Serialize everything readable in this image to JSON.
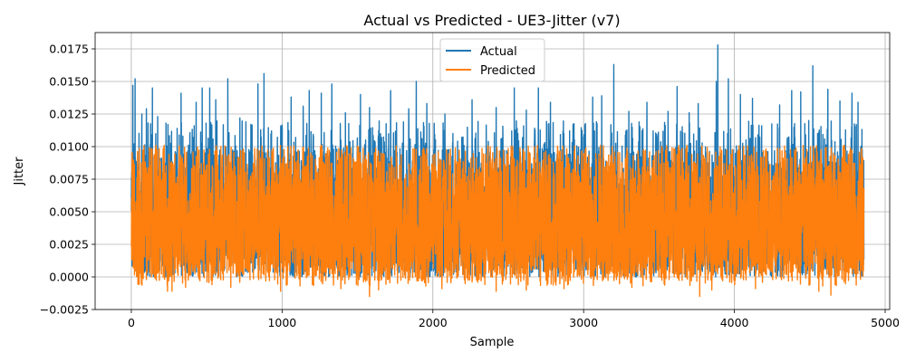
{
  "chart_data": {
    "type": "line",
    "title": "Actual vs Predicted - UE3-Jitter (v7)",
    "xlabel": "Sample",
    "ylabel": "Jitter",
    "xlim": [
      -240,
      5030
    ],
    "ylim": [
      -0.0025,
      0.01875
    ],
    "xticks": [
      0,
      1000,
      2000,
      3000,
      4000,
      5000
    ],
    "yticks": [
      -0.0025,
      0.0,
      0.0025,
      0.005,
      0.0075,
      0.01,
      0.0125,
      0.015,
      0.0175
    ],
    "xtick_labels": [
      "0",
      "1000",
      "2000",
      "3000",
      "4000",
      "5000"
    ],
    "ytick_labels": [
      "−0.0025",
      "0.0000",
      "0.0025",
      "0.0050",
      "0.0075",
      "0.0100",
      "0.0125",
      "0.0150",
      "0.0175"
    ],
    "grid": true,
    "legend_position": "top-center",
    "n_samples": 4860,
    "series": [
      {
        "name": "Actual",
        "color": "#1f77b4",
        "summary": {
          "min": 0.0,
          "typical_max": 0.0105,
          "peak_max": 0.0178,
          "peak_at_x": 3890
        },
        "spikes": [
          [
            10,
            0.0147
          ],
          [
            25,
            0.0152
          ],
          [
            70,
            0.0125
          ],
          [
            100,
            0.0129
          ],
          [
            140,
            0.0145
          ],
          [
            175,
            0.0123
          ],
          [
            230,
            0.0118
          ],
          [
            330,
            0.0141
          ],
          [
            430,
            0.0134
          ],
          [
            470,
            0.0145
          ],
          [
            520,
            0.0145
          ],
          [
            560,
            0.0136
          ],
          [
            640,
            0.0152
          ],
          [
            720,
            0.0122
          ],
          [
            840,
            0.0148
          ],
          [
            880,
            0.0156
          ],
          [
            930,
            0.0112
          ],
          [
            1060,
            0.0138
          ],
          [
            1140,
            0.0131
          ],
          [
            1180,
            0.0143
          ],
          [
            1260,
            0.0141
          ],
          [
            1330,
            0.0148
          ],
          [
            1420,
            0.0126
          ],
          [
            1520,
            0.014
          ],
          [
            1580,
            0.013
          ],
          [
            1720,
            0.0143
          ],
          [
            1840,
            0.0129
          ],
          [
            1890,
            0.015
          ],
          [
            1960,
            0.0133
          ],
          [
            2080,
            0.0125
          ],
          [
            2260,
            0.0136
          ],
          [
            2420,
            0.013
          ],
          [
            2540,
            0.0145
          ],
          [
            2620,
            0.0128
          ],
          [
            2700,
            0.0145
          ],
          [
            2780,
            0.0134
          ],
          [
            3060,
            0.0138
          ],
          [
            3120,
            0.0139
          ],
          [
            3200,
            0.0163
          ],
          [
            3300,
            0.0127
          ],
          [
            3420,
            0.0134
          ],
          [
            3560,
            0.0127
          ],
          [
            3620,
            0.0146
          ],
          [
            3700,
            0.0126
          ],
          [
            3760,
            0.0133
          ],
          [
            3880,
            0.015
          ],
          [
            3890,
            0.0178
          ],
          [
            3960,
            0.0152
          ],
          [
            4040,
            0.014
          ],
          [
            4120,
            0.0137
          ],
          [
            4300,
            0.0132
          ],
          [
            4380,
            0.0143
          ],
          [
            4440,
            0.0142
          ],
          [
            4520,
            0.0162
          ],
          [
            4620,
            0.0144
          ],
          [
            4700,
            0.0135
          ],
          [
            4780,
            0.0141
          ],
          [
            4820,
            0.0134
          ]
        ]
      },
      {
        "name": "Predicted",
        "color": "#ff7f0e",
        "summary": {
          "min": -0.0016,
          "typical_min": -0.0003,
          "typical_max": 0.01,
          "peak_max": 0.011
        },
        "dips": [
          [
            240,
            -0.0011
          ],
          [
            270,
            -0.0011
          ],
          [
            360,
            -0.0008
          ],
          [
            660,
            -0.0008
          ],
          [
            990,
            -0.0011
          ],
          [
            1390,
            -0.0009
          ],
          [
            1580,
            -0.0015
          ],
          [
            1640,
            -0.001
          ],
          [
            2060,
            -0.0009
          ],
          [
            2420,
            -0.0011
          ],
          [
            2620,
            -0.001
          ],
          [
            2870,
            -0.0009
          ],
          [
            3320,
            -0.0008
          ],
          [
            3770,
            -0.0015
          ],
          [
            3850,
            -0.001
          ],
          [
            4140,
            -0.0009
          ],
          [
            4560,
            -0.0011
          ],
          [
            4640,
            -0.0014
          ]
        ]
      }
    ]
  }
}
